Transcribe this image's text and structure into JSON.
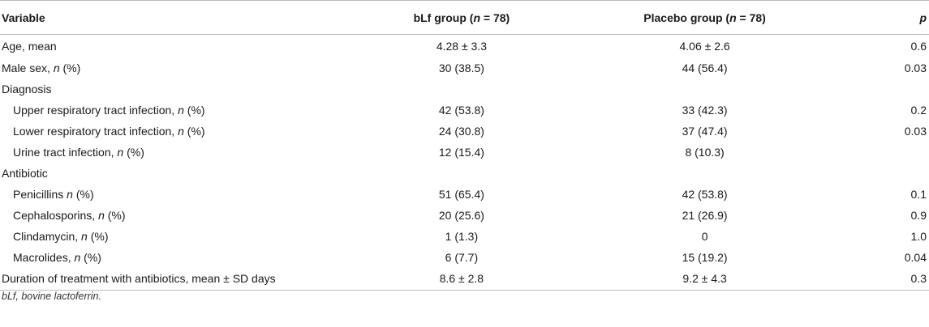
{
  "table": {
    "headers": {
      "variable": "Variable",
      "blf_prefix": "bLf group (",
      "blf_n": "n",
      "blf_suffix": " = 78)",
      "placebo_prefix": "Placebo group (",
      "placebo_n": "n",
      "placebo_suffix": " = 78)",
      "p": "p"
    },
    "rows": [
      {
        "label_pre": "Age, mean",
        "label_em": "",
        "label_post": "",
        "blf": "4.28 ± 3.3",
        "placebo": "4.06 ± 2.6",
        "p": "0.6"
      },
      {
        "label_pre": "Male sex, ",
        "label_em": "n",
        "label_post": " (%)",
        "blf": "30 (38.5)",
        "placebo": "44 (56.4)",
        "p": "0.03"
      },
      {
        "label_pre": "Diagnosis",
        "label_em": "",
        "label_post": "",
        "blf": "",
        "placebo": "",
        "p": ""
      },
      {
        "label_pre": "Upper respiratory tract infection, ",
        "label_em": "n",
        "label_post": " (%)",
        "blf": "42 (53.8)",
        "placebo": "33 (42.3)",
        "p": "0.2"
      },
      {
        "label_pre": "Lower respiratory tract infection, ",
        "label_em": "n",
        "label_post": " (%)",
        "blf": "24 (30.8)",
        "placebo": "37 (47.4)",
        "p": "0.03"
      },
      {
        "label_pre": "Urine tract infection, ",
        "label_em": "n",
        "label_post": " (%)",
        "blf": "12 (15.4)",
        "placebo": "8 (10.3)",
        "p": ""
      },
      {
        "label_pre": "Antibiotic",
        "label_em": "",
        "label_post": "",
        "blf": "",
        "placebo": "",
        "p": ""
      },
      {
        "label_pre": "Penicillins ",
        "label_em": "n",
        "label_post": " (%)",
        "blf": "51 (65.4)",
        "placebo": "42 (53.8)",
        "p": "0.1"
      },
      {
        "label_pre": "Cephalosporins, ",
        "label_em": "n",
        "label_post": " (%)",
        "blf": "20 (25.6)",
        "placebo": "21 (26.9)",
        "p": "0.9"
      },
      {
        "label_pre": "Clindamycin, ",
        "label_em": "n",
        "label_post": " (%)",
        "blf": "1 (1.3)",
        "placebo": "0",
        "p": "1.0"
      },
      {
        "label_pre": "Macrolides, ",
        "label_em": "n",
        "label_post": " (%)",
        "blf": "6 (7.7)",
        "placebo": "15 (19.2)",
        "p": "0.04"
      },
      {
        "label_pre": "Duration of treatment with antibiotics, mean ± SD days",
        "label_em": "",
        "label_post": "",
        "blf": "8.6 ± 2.8",
        "placebo": "9.2 ± 4.3",
        "p": "0.3"
      }
    ]
  },
  "footnote": "bLf, bovine lactoferrin."
}
